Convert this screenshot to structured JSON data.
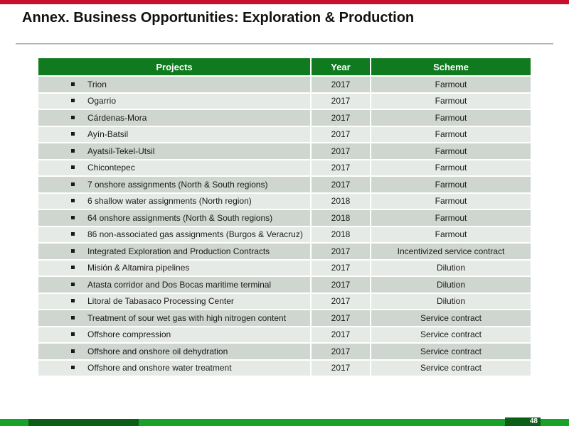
{
  "slide": {
    "title": "Annex. Business Opportunities: Exploration & Production",
    "page_number": "48"
  },
  "table": {
    "headers": [
      "Projects",
      "Year",
      "Scheme"
    ],
    "rows": [
      {
        "project": "Trion",
        "year": "2017",
        "scheme": "Farmout"
      },
      {
        "project": "Ogarrio",
        "year": "2017",
        "scheme": "Farmout"
      },
      {
        "project": "Cárdenas-Mora",
        "year": "2017",
        "scheme": "Farmout"
      },
      {
        "project": "Ayín-Batsil",
        "year": "2017",
        "scheme": "Farmout"
      },
      {
        "project": "Ayatsil-Tekel-Utsil",
        "year": "2017",
        "scheme": "Farmout"
      },
      {
        "project": "Chicontepec",
        "year": "2017",
        "scheme": "Farmout"
      },
      {
        "project": "7 onshore assignments (North & South regions)",
        "year": "2017",
        "scheme": "Farmout"
      },
      {
        "project": "6 shallow water assignments (North region)",
        "year": "2018",
        "scheme": "Farmout"
      },
      {
        "project": "64 onshore assignments (North & South regions)",
        "year": "2018",
        "scheme": "Farmout"
      },
      {
        "project": "86 non-associated gas assignments (Burgos & Veracruz)",
        "year": "2018",
        "scheme": "Farmout"
      },
      {
        "project": "Integrated Exploration and Production Contracts",
        "year": "2017",
        "scheme": "Incentivized service contract"
      },
      {
        "project": "Misión & Altamira pipelines",
        "year": "2017",
        "scheme": "Dilution"
      },
      {
        "project": "Atasta corridor  and Dos Bocas maritime terminal",
        "year": "2017",
        "scheme": "Dilution"
      },
      {
        "project": "Litoral de Tabasaco Processing Center",
        "year": "2017",
        "scheme": "Dilution"
      },
      {
        "project": "Treatment of sour wet gas with high nitrogen content",
        "year": "2017",
        "scheme": "Service contract"
      },
      {
        "project": "Offshore compression",
        "year": "2017",
        "scheme": "Service contract"
      },
      {
        "project": "Offshore and onshore oil dehydration",
        "year": "2017",
        "scheme": "Service contract"
      },
      {
        "project": "Offshore and onshore water treatment",
        "year": "2017",
        "scheme": "Service contract"
      }
    ]
  },
  "colors": {
    "header_green": "#0f7a1e",
    "accent_red": "#c8102e",
    "footer_green": "#18a22a",
    "footer_dark_green": "#0c5e17"
  }
}
